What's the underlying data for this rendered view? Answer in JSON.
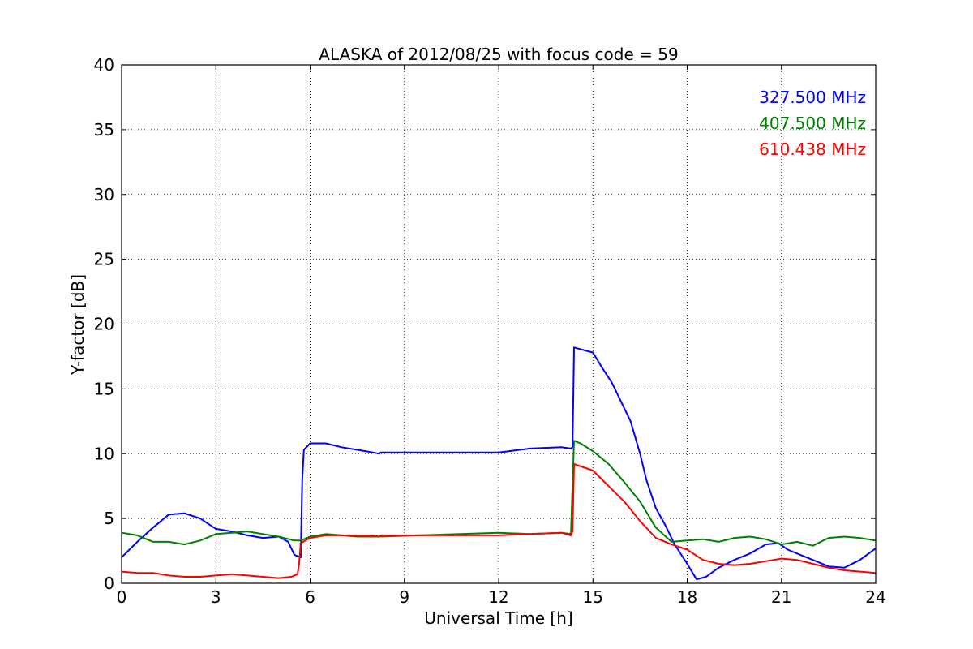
{
  "chart_data": {
    "type": "line",
    "title": "ALASKA of 2012/08/25 with focus code = 59",
    "xlabel": "Universal Time [h]",
    "ylabel": "Y-factor [dB]",
    "xlim": [
      0,
      24
    ],
    "ylim": [
      0,
      40
    ],
    "xticks": [
      0,
      3,
      6,
      9,
      12,
      15,
      18,
      21,
      24
    ],
    "yticks": [
      0,
      5,
      10,
      15,
      20,
      25,
      30,
      35,
      40
    ],
    "grid": true,
    "legend_position": "top-right",
    "series": [
      {
        "name": "327.500 MHz",
        "color": "#0000ff",
        "x": [
          0,
          0.5,
          1.0,
          1.5,
          2.0,
          2.5,
          3.0,
          3.5,
          4.0,
          4.5,
          5.0,
          5.3,
          5.5,
          5.7,
          5.75,
          5.8,
          6.0,
          6.5,
          7.0,
          7.5,
          8.0,
          8.2,
          8.25,
          12.0,
          13.0,
          14.0,
          14.3,
          14.35,
          14.4,
          15.0,
          15.3,
          15.6,
          15.9,
          16.2,
          16.5,
          16.7,
          17.0,
          17.3,
          17.6,
          18.0,
          18.3,
          18.6,
          19.0,
          19.5,
          20.0,
          20.5,
          20.9,
          21.2,
          21.6,
          22.0,
          22.5,
          23.0,
          23.5,
          24.0
        ],
        "y": [
          2.0,
          3.2,
          4.3,
          5.3,
          5.4,
          5.0,
          4.2,
          4.0,
          3.7,
          3.5,
          3.6,
          3.2,
          2.2,
          2.0,
          8.0,
          10.3,
          10.8,
          10.8,
          10.5,
          10.3,
          10.1,
          10.0,
          10.1,
          10.1,
          10.4,
          10.5,
          10.4,
          10.5,
          18.2,
          17.8,
          16.6,
          15.5,
          14.0,
          12.5,
          10.0,
          8.0,
          5.8,
          4.5,
          3.0,
          1.5,
          0.3,
          0.5,
          1.2,
          1.8,
          2.3,
          3.0,
          3.1,
          2.6,
          2.2,
          1.8,
          1.3,
          1.2,
          1.8,
          2.7
        ]
      },
      {
        "name": "407.500 MHz",
        "color": "#008000",
        "x": [
          0,
          0.5,
          1.0,
          1.5,
          2.0,
          2.5,
          3.0,
          3.5,
          4.0,
          4.5,
          5.0,
          5.5,
          5.7,
          6.0,
          6.5,
          7.0,
          7.5,
          8.0,
          8.2,
          12.0,
          13.0,
          14.0,
          14.3,
          14.4,
          14.6,
          15.0,
          15.5,
          16.0,
          16.5,
          17.0,
          17.5,
          18.0,
          18.5,
          19.0,
          19.5,
          20.0,
          20.5,
          21.0,
          21.5,
          22.0,
          22.5,
          23.0,
          23.5,
          24.0
        ],
        "y": [
          3.9,
          3.7,
          3.2,
          3.2,
          3.0,
          3.3,
          3.8,
          3.9,
          4.0,
          3.8,
          3.6,
          3.3,
          3.3,
          3.6,
          3.8,
          3.7,
          3.6,
          3.6,
          3.6,
          3.9,
          3.8,
          3.9,
          3.8,
          11.0,
          10.8,
          10.2,
          9.2,
          7.8,
          6.3,
          4.3,
          3.2,
          3.3,
          3.4,
          3.2,
          3.5,
          3.6,
          3.4,
          3.0,
          3.2,
          2.9,
          3.5,
          3.6,
          3.5,
          3.3
        ]
      },
      {
        "name": "610.438 MHz",
        "color": "#ff0000",
        "x": [
          0,
          0.5,
          1.0,
          1.5,
          2.0,
          2.5,
          3.0,
          3.5,
          4.0,
          4.5,
          5.0,
          5.4,
          5.6,
          5.65,
          5.7,
          6.0,
          6.5,
          7.0,
          7.5,
          8.0,
          8.2,
          8.25,
          12.0,
          13.0,
          14.0,
          14.3,
          14.35,
          14.4,
          15.0,
          15.5,
          16.0,
          16.5,
          17.0,
          17.5,
          18.0,
          18.5,
          19.0,
          19.5,
          20.0,
          20.5,
          21.0,
          21.5,
          22.0,
          22.5,
          23.0,
          23.5,
          24.0
        ],
        "y": [
          0.9,
          0.8,
          0.8,
          0.6,
          0.5,
          0.5,
          0.6,
          0.7,
          0.6,
          0.5,
          0.4,
          0.5,
          0.7,
          1.5,
          3.1,
          3.5,
          3.7,
          3.7,
          3.7,
          3.7,
          3.6,
          3.7,
          3.7,
          3.8,
          3.9,
          3.7,
          4.0,
          9.2,
          8.7,
          7.5,
          6.3,
          4.8,
          3.5,
          3.0,
          2.6,
          1.8,
          1.5,
          1.4,
          1.5,
          1.7,
          1.9,
          1.8,
          1.5,
          1.2,
          1.0,
          0.9,
          0.8
        ]
      }
    ]
  }
}
